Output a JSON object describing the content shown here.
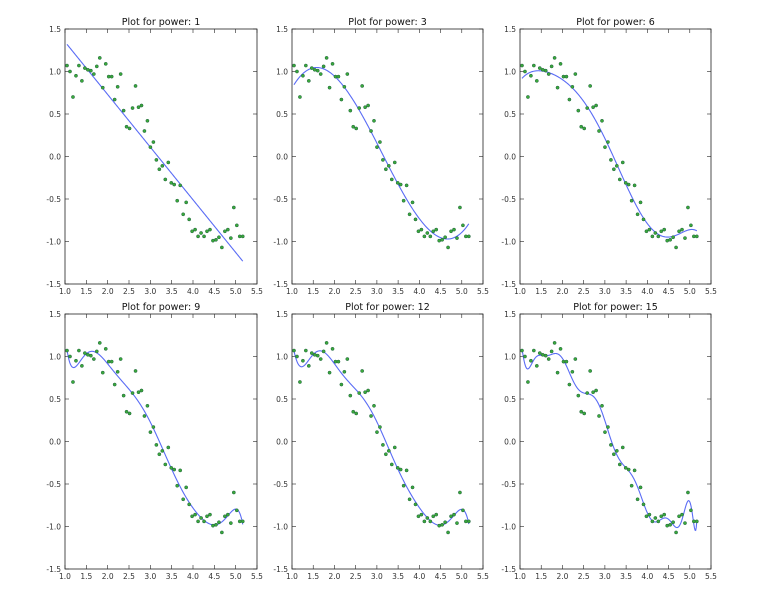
{
  "colors": {
    "line": "#5a6cf5",
    "point_fill": "#3aa83a",
    "point_edge": "#1f5f3f",
    "frame": "#222222"
  },
  "chart_data": [
    {
      "type": "scatter+line",
      "title": "Plot for power: 1",
      "power": 1
    },
    {
      "type": "scatter+line",
      "title": "Plot for power: 3",
      "power": 3
    },
    {
      "type": "scatter+line",
      "title": "Plot for power: 6",
      "power": 6
    },
    {
      "type": "scatter+line",
      "title": "Plot for power: 9",
      "power": 9
    },
    {
      "type": "scatter+line",
      "title": "Plot for power: 12",
      "power": 12
    },
    {
      "type": "scatter+line",
      "title": "Plot for power: 15",
      "power": 15
    }
  ],
  "shared_axes": {
    "xlim": [
      1.0,
      5.5
    ],
    "ylim": [
      -1.5,
      1.5
    ],
    "xticks": [
      "1.0",
      "1.5",
      "2.0",
      "2.5",
      "3.0",
      "3.5",
      "4.0",
      "4.5",
      "5.0",
      "5.5"
    ],
    "yticks": [
      "-1.5",
      "-1.0",
      "-0.5",
      "0.0",
      "0.5",
      "1.0",
      "1.5"
    ],
    "grid": false
  },
  "scatter": {
    "x": [
      1.047,
      1.117,
      1.187,
      1.257,
      1.326,
      1.396,
      1.466,
      1.536,
      1.606,
      1.676,
      1.745,
      1.815,
      1.885,
      1.955,
      2.025,
      2.094,
      2.164,
      2.234,
      2.304,
      2.374,
      2.443,
      2.513,
      2.583,
      2.653,
      2.723,
      2.793,
      2.862,
      2.932,
      3.002,
      3.072,
      3.142,
      3.211,
      3.281,
      3.351,
      3.421,
      3.491,
      3.56,
      3.63,
      3.7,
      3.77,
      3.84,
      3.91,
      3.979,
      4.049,
      4.119,
      4.189,
      4.259,
      4.328,
      4.398,
      4.468,
      4.538,
      4.608,
      4.677,
      4.747,
      4.817,
      4.887,
      4.957,
      5.027,
      5.096,
      5.166
    ],
    "y": [
      1.07,
      1.0,
      0.7,
      0.95,
      1.07,
      0.89,
      1.04,
      1.02,
      1.01,
      0.97,
      1.06,
      1.16,
      0.81,
      1.09,
      0.94,
      0.94,
      0.67,
      0.82,
      0.97,
      0.54,
      0.35,
      0.33,
      0.57,
      0.83,
      0.58,
      0.6,
      0.3,
      0.42,
      0.11,
      0.17,
      -0.04,
      -0.15,
      -0.11,
      -0.27,
      -0.07,
      -0.31,
      -0.33,
      -0.52,
      -0.34,
      -0.68,
      -0.54,
      -0.74,
      -0.88,
      -0.86,
      -0.94,
      -0.9,
      -0.94,
      -0.88,
      -0.86,
      -0.99,
      -0.98,
      -0.95,
      -1.07,
      -0.88,
      -0.86,
      -0.96,
      -0.6,
      -0.81,
      -0.94,
      -0.94
    ]
  }
}
